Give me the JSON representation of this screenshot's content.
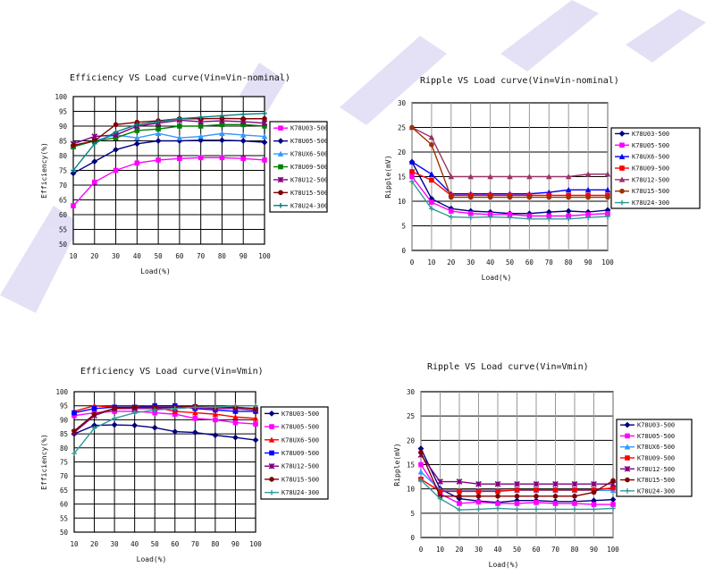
{
  "chart_data": [
    {
      "type": "line",
      "title": "Efficiency     VS Load curve(Vin=Vin-nominal)",
      "xlabel": "Load(%)",
      "ylabel": "Efficiency(%)",
      "x": [
        10,
        20,
        30,
        40,
        50,
        60,
        70,
        80,
        90,
        100
      ],
      "xticks": [
        "10",
        "20",
        "30",
        "40",
        "50",
        "60",
        "70",
        "80",
        "90",
        "100"
      ],
      "ylim": [
        50,
        100
      ],
      "yticks": [
        "50",
        "55",
        "60",
        "65",
        "70",
        "75",
        "80",
        "85",
        "90",
        "95",
        "100"
      ],
      "grid": true,
      "legend": "right",
      "series": [
        {
          "name": "K78U03-500",
          "color": "#ff00ff",
          "marker": "square",
          "values": [
            63,
            71,
            75,
            77.5,
            78.5,
            79,
            79.3,
            79.3,
            79,
            78.5
          ]
        },
        {
          "name": "K78U05-500",
          "color": "#000080",
          "marker": "diamond",
          "values": [
            74,
            78,
            82,
            84,
            85,
            85,
            85.2,
            85.2,
            85,
            84.5
          ]
        },
        {
          "name": "K78UX6-500",
          "color": "#3399ff",
          "marker": "triangle",
          "values": [
            83,
            85,
            87,
            86,
            87.5,
            86,
            86.5,
            87.5,
            87,
            86.5
          ]
        },
        {
          "name": "K78U09-500",
          "color": "#008000",
          "marker": "square",
          "values": [
            83,
            85,
            86,
            88.5,
            89,
            90,
            90,
            90.5,
            90.5,
            90
          ]
        },
        {
          "name": "K78U12-500",
          "color": "#800080",
          "marker": "x",
          "values": [
            84,
            86.5,
            87,
            90,
            91,
            92,
            91.5,
            91.8,
            91.5,
            91
          ]
        },
        {
          "name": "K78U15-500",
          "color": "#800000",
          "marker": "circle",
          "values": [
            83.5,
            85,
            90.5,
            91.3,
            91.8,
            92.5,
            92.5,
            92.6,
            92.5,
            92.5
          ]
        },
        {
          "name": "K78U24-300",
          "color": "#008080",
          "marker": "plus",
          "values": [
            75,
            84,
            88,
            90.5,
            91.5,
            92.5,
            93,
            93.5,
            94,
            94.3
          ]
        }
      ]
    },
    {
      "type": "line",
      "title": "Ripple VS Load curve(Vin=Vin-nominal)",
      "xlabel": "Load(%)",
      "ylabel": "Ripple(mV)",
      "x": [
        0,
        10,
        20,
        30,
        40,
        50,
        60,
        70,
        80,
        90,
        100
      ],
      "xticks": [
        "0",
        "10",
        "20",
        "30",
        "40",
        "50",
        "60",
        "70",
        "80",
        "90",
        "100"
      ],
      "ylim": [
        0,
        30
      ],
      "yticks": [
        "0",
        "5",
        "10",
        "15",
        "20",
        "25",
        "30"
      ],
      "grid": true,
      "legend": "right",
      "series": [
        {
          "name": "K78U03-500",
          "color": "#000080",
          "marker": "diamond",
          "values": [
            18,
            10.5,
            8.5,
            8,
            7.8,
            7.5,
            7.5,
            7.8,
            8,
            7.8,
            8.2
          ]
        },
        {
          "name": "K78U05-500",
          "color": "#ff00ff",
          "marker": "square",
          "values": [
            15,
            9.8,
            8,
            7.5,
            7.3,
            7.3,
            7,
            7,
            7,
            7.3,
            7.5
          ]
        },
        {
          "name": "K78UX6-500",
          "color": "#0000ff",
          "marker": "triangle",
          "values": [
            18,
            15.5,
            11.5,
            11.5,
            11.5,
            11.5,
            11.5,
            11.8,
            12.3,
            12.3,
            12.3
          ]
        },
        {
          "name": "K78U09-500",
          "color": "#ff0000",
          "marker": "square",
          "values": [
            16,
            14.3,
            11.2,
            11.2,
            11.2,
            11.2,
            11.2,
            11.2,
            11.2,
            11.2,
            11.2
          ]
        },
        {
          "name": "K78U12-500",
          "color": "#993366",
          "marker": "triangle",
          "values": [
            25,
            23,
            15,
            15,
            15,
            15,
            15,
            15,
            15,
            15.5,
            15.5
          ]
        },
        {
          "name": "K78U15-500",
          "color": "#993300",
          "marker": "circle",
          "values": [
            25,
            21.5,
            10.8,
            10.8,
            10.8,
            10.8,
            10.8,
            10.8,
            10.8,
            10.8,
            10.8
          ]
        },
        {
          "name": "K78U24-300",
          "color": "#339999",
          "marker": "plus",
          "values": [
            14,
            8.5,
            6.8,
            6.7,
            6.8,
            6.7,
            6.4,
            6.4,
            6.4,
            6.7,
            6.9
          ]
        }
      ]
    },
    {
      "type": "line",
      "title": "Efficiency VS Load curve(Vin=Vmin)",
      "xlabel": "Load(%)",
      "ylabel": "Efficiency(%)",
      "x": [
        10,
        20,
        30,
        40,
        50,
        60,
        70,
        80,
        90,
        100
      ],
      "xticks": [
        "10",
        "20",
        "30",
        "40",
        "50",
        "60",
        "70",
        "80",
        "90",
        "100"
      ],
      "ylim": [
        50,
        100
      ],
      "yticks": [
        "50",
        "55",
        "60",
        "65",
        "70",
        "75",
        "80",
        "85",
        "90",
        "95",
        "100"
      ],
      "grid": true,
      "legend": "right",
      "series": [
        {
          "name": "K78U03-500",
          "color": "#000080",
          "marker": "diamond",
          "values": [
            85,
            88,
            88.2,
            88,
            87.2,
            85.8,
            85.5,
            84.5,
            83.7,
            82.8
          ]
        },
        {
          "name": "K78U05-500",
          "color": "#ff00ff",
          "marker": "square",
          "values": [
            91.5,
            92.5,
            93,
            93,
            92.5,
            92,
            90.5,
            90,
            89,
            88.5
          ]
        },
        {
          "name": "K78UX6-500",
          "color": "#ff0000",
          "marker": "triangle",
          "values": [
            93,
            95,
            94.5,
            94.5,
            94.5,
            93,
            92.5,
            92,
            91,
            90.5
          ]
        },
        {
          "name": "K78U09-500",
          "color": "#0000ff",
          "marker": "square",
          "values": [
            92.5,
            94,
            94.5,
            94.5,
            95,
            95,
            94,
            93.5,
            93,
            93
          ]
        },
        {
          "name": "K78U12-500",
          "color": "#800080",
          "marker": "x",
          "values": [
            85.5,
            91.5,
            94,
            94,
            94,
            94,
            94.5,
            94,
            94,
            93.5
          ]
        },
        {
          "name": "K78U15-500",
          "color": "#800000",
          "marker": "circle",
          "values": [
            86,
            92,
            94,
            94.5,
            94.5,
            94.5,
            94.8,
            94.5,
            94.5,
            94
          ]
        },
        {
          "name": "K78U24-300",
          "color": "#339999",
          "marker": "plus",
          "values": [
            78,
            87,
            90.5,
            92.5,
            93.5,
            94,
            94.5,
            94.5,
            95,
            95
          ]
        }
      ]
    },
    {
      "type": "line",
      "title": "Ripple VS Load curve(Vin=Vmin)",
      "xlabel": "Load(%)",
      "ylabel": "Ripple(mV)",
      "x": [
        0,
        10,
        20,
        30,
        40,
        50,
        60,
        70,
        80,
        90,
        100
      ],
      "xticks": [
        "0",
        "10",
        "20",
        "30",
        "40",
        "50",
        "60",
        "70",
        "80",
        "90",
        "100"
      ],
      "ylim": [
        0,
        30
      ],
      "yticks": [
        "0",
        "5",
        "10",
        "15",
        "20",
        "25",
        "30"
      ],
      "grid": true,
      "legend": "right",
      "series": [
        {
          "name": "K78U03-500",
          "color": "#000080",
          "marker": "diamond",
          "values": [
            18.3,
            10,
            8,
            7.5,
            7.2,
            7.6,
            7.6,
            7.4,
            7.4,
            7.6,
            7.8
          ]
        },
        {
          "name": "K78U05-500",
          "color": "#ff00ff",
          "marker": "square",
          "values": [
            15,
            9,
            7,
            7.3,
            7,
            7,
            7.2,
            7,
            7,
            6.8,
            6.8
          ]
        },
        {
          "name": "K78UX6-500",
          "color": "#3399ff",
          "marker": "triangle",
          "values": [
            13.5,
            9.8,
            9.8,
            9.8,
            9.8,
            9.7,
            9.7,
            9.7,
            9.7,
            9.7,
            9.7
          ]
        },
        {
          "name": "K78U09-500",
          "color": "#ff0000",
          "marker": "square",
          "values": [
            12,
            9.5,
            9.5,
            9.5,
            9.5,
            9.8,
            9.8,
            9.8,
            9.8,
            9.8,
            10.2
          ]
        },
        {
          "name": "K78U12-500",
          "color": "#800080",
          "marker": "x",
          "values": [
            17,
            11.5,
            11.5,
            11,
            11,
            11,
            11,
            11,
            11,
            11,
            11
          ]
        },
        {
          "name": "K78U15-500",
          "color": "#800000",
          "marker": "circle",
          "values": [
            17.5,
            8.5,
            8.5,
            8.5,
            8.5,
            8.5,
            8.5,
            8.5,
            8.5,
            9.3,
            11.7
          ]
        },
        {
          "name": "K78U24-300",
          "color": "#339999",
          "marker": "plus",
          "values": [
            11.8,
            8,
            5.7,
            5.8,
            6,
            5.8,
            5.8,
            5.8,
            5.8,
            5.8,
            6
          ]
        }
      ]
    }
  ]
}
